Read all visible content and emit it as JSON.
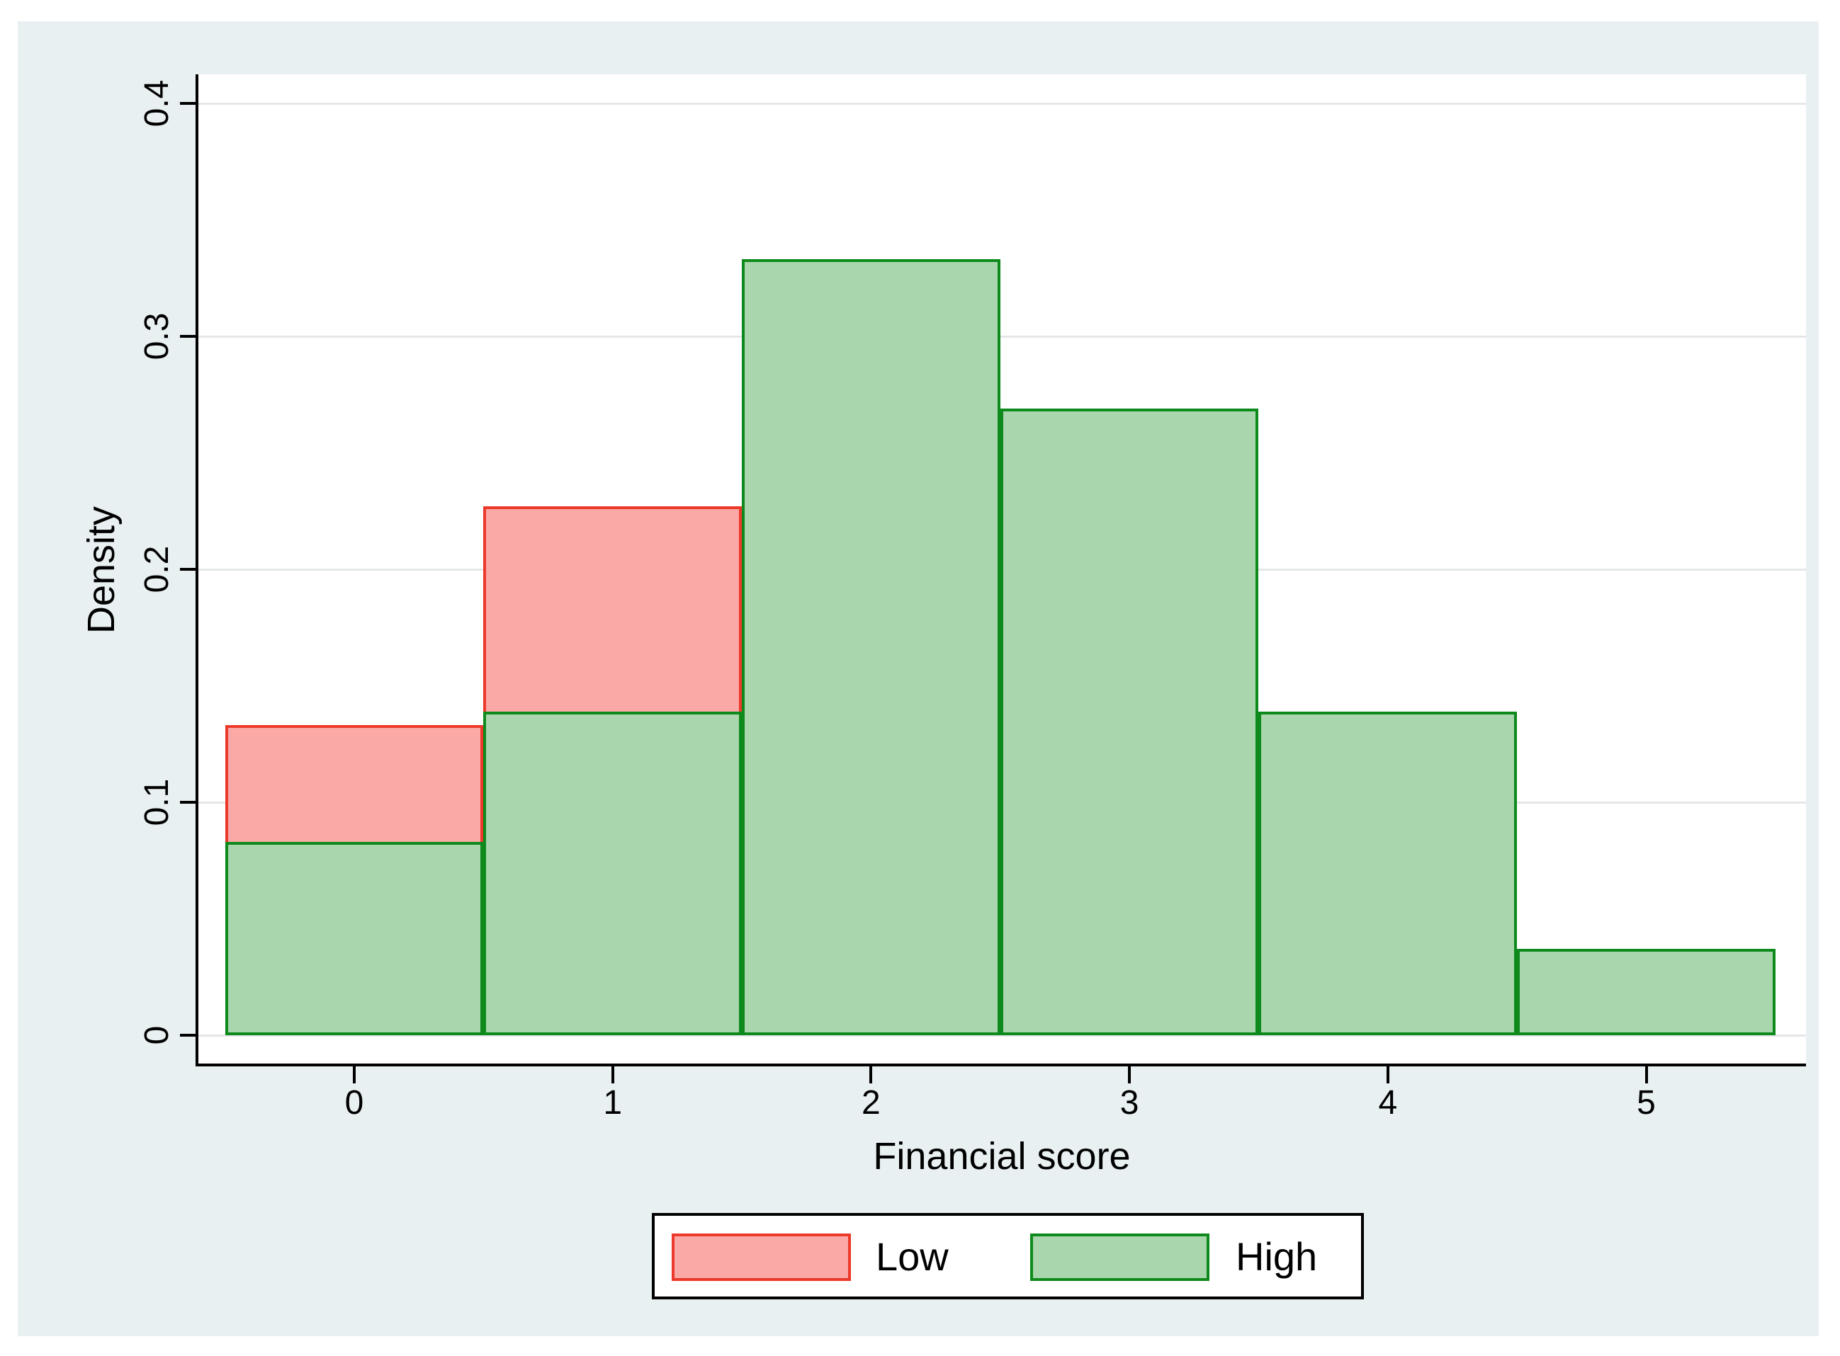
{
  "window": {
    "outer_background": "#ffffff",
    "panel_background": "#e9f0f2",
    "plot_background": "#ffffff",
    "gridline_color": "#e4e7e8",
    "axis_color": "#000000"
  },
  "chart_data": {
    "type": "bar",
    "subtype": "overlaid-histogram",
    "title": "",
    "xlabel": "Financial score",
    "ylabel": "Density",
    "x_tick_labels": [
      "0",
      "1",
      "2",
      "3",
      "4",
      "5"
    ],
    "y_tick_labels": [
      "0",
      "0.1",
      "0.2",
      "0.3",
      "0.4"
    ],
    "y_tick_values": [
      0,
      0.1,
      0.2,
      0.3,
      0.4
    ],
    "xlim": [
      -0.6,
      5.6
    ],
    "ylim": [
      0,
      0.41
    ],
    "bin_width": 1,
    "grid": "horizontal-major",
    "legend_position": "bottom-center",
    "series": [
      {
        "name": "Low",
        "fill": "#fba9a6",
        "border": "#ec392b",
        "bins": [
          0,
          1
        ],
        "densities": [
          0.133,
          0.227
        ]
      },
      {
        "name": "High",
        "fill": "#a9d6ac",
        "border": "#0e8a1c",
        "bins": [
          0,
          1,
          2,
          3,
          4,
          5
        ],
        "densities": [
          0.083,
          0.139,
          0.333,
          0.269,
          0.139,
          0.037
        ]
      }
    ],
    "legend": {
      "entries": [
        {
          "label": "Low"
        },
        {
          "label": "High"
        }
      ]
    }
  }
}
